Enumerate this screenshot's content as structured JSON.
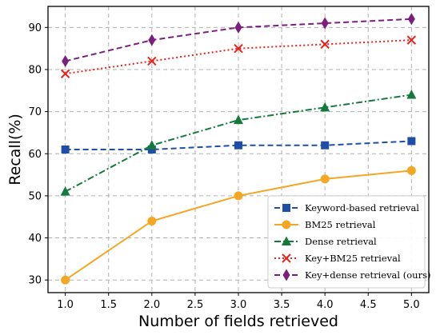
{
  "chart_data": {
    "type": "line",
    "xlabel": "Number of fields retrieved",
    "ylabel": "Recall(%)",
    "x": [
      1,
      2,
      3,
      4,
      5
    ],
    "xlim": [
      0.8,
      5.2
    ],
    "ylim": [
      27,
      95
    ],
    "x_ticks": [
      "1.0",
      "1.5",
      "2.0",
      "2.5",
      "3.0",
      "3.5",
      "4.0",
      "4.5",
      "5.0"
    ],
    "x_tick_values": [
      1.0,
      1.5,
      2.0,
      2.5,
      3.0,
      3.5,
      4.0,
      4.5,
      5.0
    ],
    "y_ticks": [
      "30",
      "40",
      "50",
      "60",
      "70",
      "80",
      "90"
    ],
    "y_tick_values": [
      30,
      40,
      50,
      60,
      70,
      80,
      90
    ],
    "grid": true,
    "legend_position": "lower-right",
    "series": [
      {
        "name": "Keyword-based retrieval",
        "values": [
          61,
          61,
          62,
          62,
          63
        ],
        "color": "#1f4ea8",
        "marker": "square",
        "line_style": "dashed"
      },
      {
        "name": "BM25 retrieval",
        "values": [
          30,
          44,
          50,
          54,
          56
        ],
        "color": "#f5a623",
        "marker": "circle",
        "line_style": "solid"
      },
      {
        "name": "Dense retrieval",
        "values": [
          51,
          62,
          68,
          71,
          74
        ],
        "color": "#137a3c",
        "marker": "triangle",
        "line_style": "dashdot"
      },
      {
        "name": "Key+BM25 retrieval",
        "values": [
          79,
          82,
          85,
          86,
          87
        ],
        "color": "#e8231c",
        "marker": "x",
        "line_style": "dotted"
      },
      {
        "name": "Key+dense retrieval (ours)",
        "values": [
          82,
          87,
          90,
          91,
          92
        ],
        "color": "#7b1f7e",
        "marker": "diamond",
        "line_style": "dashed"
      }
    ]
  }
}
